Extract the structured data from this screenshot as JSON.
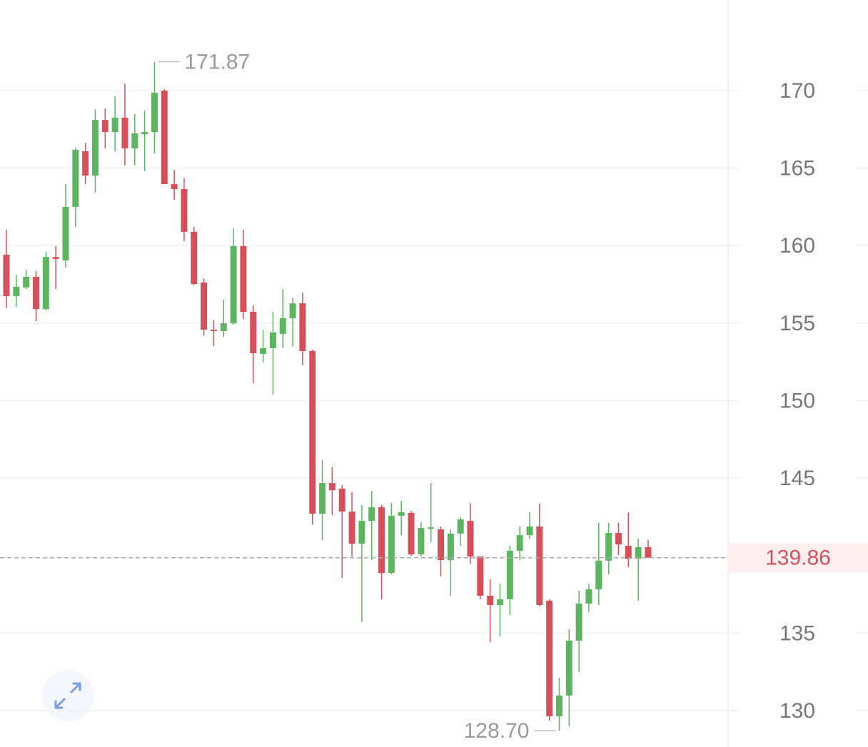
{
  "chart_data": {
    "type": "candlestick",
    "open": [
      159.41,
      156.74,
      157.3,
      157.99,
      155.91,
      159.27,
      159.05,
      162.5,
      166.09,
      164.52,
      168.11,
      167.33,
      168.25,
      166.27,
      167.19,
      167.33,
      170.0,
      163.97,
      163.65,
      160.89,
      157.62,
      154.58,
      154.49,
      154.99,
      159.97,
      155.73,
      153.02,
      153.38,
      154.3,
      155.32,
      156.28,
      153.2,
      142.7,
      144.68,
      144.32,
      142.84,
      140.77,
      142.24,
      143.12,
      138.88,
      142.57,
      142.75,
      140.08,
      141.73,
      141.69,
      139.71,
      141.42,
      142.24,
      139.94,
      137.41,
      136.81,
      137.18,
      140.31,
      141.32,
      141.88,
      137.09,
      129.63,
      130.97,
      134.51,
      136.9,
      137.83,
      139.67,
      141.46,
      140.63,
      139.8,
      140.54
    ],
    "high": [
      161.02,
      158.12,
      158.45,
      158.36,
      159.6,
      159.97,
      163.97,
      166.32,
      166.64,
      168.8,
      168.85,
      169.63,
      170.46,
      168.48,
      168.71,
      171.87,
      170.09,
      164.89,
      164.34,
      161.21,
      157.89,
      155.22,
      156.51,
      161.12,
      161.02,
      156.14,
      154.58,
      155.73,
      157.2,
      156.61,
      156.97,
      153.29,
      146.16,
      145.7,
      144.55,
      144.09,
      143.26,
      144.18,
      143.26,
      143.4,
      143.53,
      142.89,
      142.15,
      144.68,
      141.88,
      141.69,
      142.47,
      143.39,
      139.94,
      138.47,
      138.19,
      140.63,
      141.88,
      142.8,
      143.35,
      137.18,
      132.12,
      135.25,
      137.73,
      138.19,
      142.11,
      142.11,
      142.11,
      142.8,
      141.09,
      141.0
    ],
    "low": [
      155.96,
      156.05,
      157.2,
      155.13,
      155.82,
      157.2,
      158.58,
      161.21,
      163.97,
      163.42,
      166.27,
      166.09,
      165.17,
      165.17,
      164.8,
      165.95,
      163.97,
      162.96,
      160.29,
      157.43,
      154.21,
      153.52,
      154.12,
      154.9,
      155.27,
      151.13,
      152.46,
      150.39,
      153.38,
      153.52,
      152.28,
      142.01,
      141.0,
      142.61,
      138.56,
      139.94,
      135.71,
      139.71,
      137.18,
      138.79,
      141.32,
      139.99,
      139.94,
      140.86,
      138.65,
      137.41,
      140.63,
      139.48,
      137.18,
      134.42,
      134.79,
      136.17,
      139.71,
      141.09,
      136.72,
      129.36,
      128.7,
      128.99,
      132.49,
      136.35,
      136.81,
      138.79,
      140.03,
      139.25,
      137.09,
      139.85
    ],
    "close": [
      156.74,
      157.34,
      157.99,
      155.91,
      159.27,
      159.14,
      162.5,
      166.18,
      164.52,
      168.11,
      167.33,
      168.25,
      166.27,
      167.24,
      167.33,
      169.86,
      163.97,
      163.65,
      160.89,
      157.53,
      154.58,
      154.49,
      154.99,
      159.97,
      155.73,
      153.06,
      153.38,
      154.4,
      155.32,
      156.28,
      153.2,
      142.7,
      144.68,
      144.22,
      142.84,
      140.77,
      142.24,
      143.12,
      138.88,
      142.57,
      142.8,
      140.08,
      141.78,
      141.82,
      139.71,
      141.42,
      142.34,
      139.94,
      137.41,
      136.81,
      137.18,
      140.31,
      141.32,
      141.88,
      136.81,
      129.63,
      130.97,
      134.51,
      136.9,
      137.83,
      139.67,
      141.46,
      140.72,
      139.8,
      140.54,
      139.86
    ],
    "up_color": "#5db562",
    "down_color": "#d5505a",
    "ylim": [
      127.65,
      175.85
    ],
    "yticks": [
      130,
      135,
      145,
      150,
      155,
      160,
      165,
      170
    ],
    "grid": true,
    "high_marker": 171.87,
    "low_marker": {
      "value": 128.7,
      "label": "128.70"
    },
    "last_price": 139.86
  }
}
